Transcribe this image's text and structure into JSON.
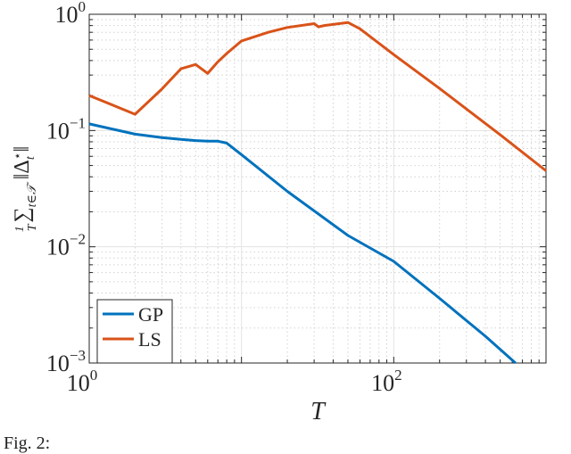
{
  "chart_data": {
    "type": "line",
    "title": "",
    "xlabel": "T",
    "ylabel": "(1/T) ∑_{t∈𝒯} ‖Δ_t^⋆‖",
    "xscale": "log",
    "yscale": "log",
    "xlim": [
      1,
      1000
    ],
    "ylim": [
      0.001,
      1
    ],
    "xticks": [
      {
        "value": 1,
        "label": "10^0"
      },
      {
        "value": 100,
        "label": "10^2"
      }
    ],
    "yticks": [
      {
        "value": 1,
        "label": "10^0"
      },
      {
        "value": 0.1,
        "label": "10^-1"
      },
      {
        "value": 0.01,
        "label": "10^-2"
      },
      {
        "value": 0.001,
        "label": "10^-3"
      }
    ],
    "grid": true,
    "legend_position": "bottom-left",
    "series": [
      {
        "name": "GP",
        "color": "#0072BD",
        "x": [
          1,
          2,
          3,
          4,
          5,
          6,
          7,
          8,
          10,
          20,
          50,
          100,
          200,
          400,
          630
        ],
        "y": [
          0.114,
          0.093,
          0.087,
          0.084,
          0.082,
          0.081,
          0.081,
          0.078,
          0.062,
          0.03,
          0.0125,
          0.0075,
          0.0036,
          0.0017,
          0.001
        ]
      },
      {
        "name": "LS",
        "color": "#D95319",
        "x": [
          1,
          2,
          3,
          4,
          5,
          6,
          7,
          8,
          10,
          15,
          20,
          30,
          32,
          35,
          50,
          60,
          100,
          200,
          500,
          1000
        ],
        "y": [
          0.2,
          0.138,
          0.227,
          0.34,
          0.37,
          0.31,
          0.39,
          0.46,
          0.59,
          0.7,
          0.77,
          0.83,
          0.78,
          0.8,
          0.85,
          0.75,
          0.45,
          0.23,
          0.092,
          0.045
        ]
      }
    ]
  },
  "caption": "Fig. 2:"
}
